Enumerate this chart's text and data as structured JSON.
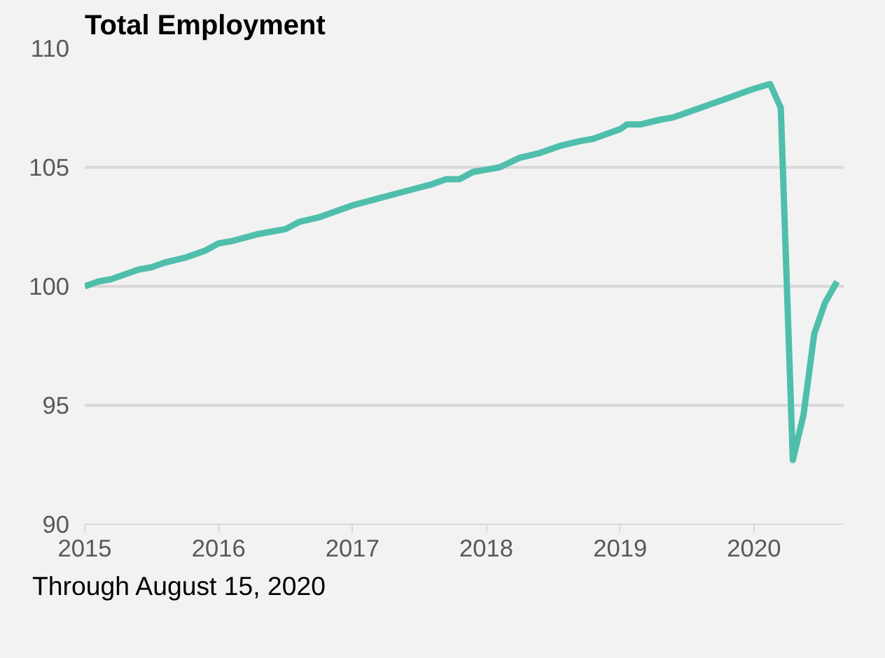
{
  "chart_data": {
    "type": "line",
    "title": "Total Employment",
    "x": [
      2015.0,
      2015.1,
      2015.2,
      2015.4,
      2015.5,
      2015.6,
      2015.75,
      2015.9,
      2016.0,
      2016.1,
      2016.3,
      2016.4,
      2016.5,
      2016.6,
      2016.75,
      2016.9,
      2017.0,
      2017.2,
      2017.4,
      2017.6,
      2017.7,
      2017.8,
      2017.9,
      2018.0,
      2018.1,
      2018.25,
      2018.4,
      2018.55,
      2018.7,
      2018.8,
      2019.0,
      2019.05,
      2019.15,
      2019.3,
      2019.4,
      2019.6,
      2019.8,
      2019.9,
      2020.0,
      2020.12,
      2020.2,
      2020.29,
      2020.37,
      2020.45,
      2020.53,
      2020.62
    ],
    "series": [
      {
        "color": "#4fbfac",
        "values": [
          100.0,
          100.2,
          100.3,
          100.7,
          100.8,
          101.0,
          101.2,
          101.5,
          101.8,
          101.9,
          102.2,
          102.3,
          102.4,
          102.7,
          102.9,
          103.2,
          103.4,
          103.7,
          104.0,
          104.3,
          104.5,
          104.5,
          104.8,
          104.9,
          105.0,
          105.4,
          105.6,
          105.9,
          106.1,
          106.2,
          106.6,
          106.8,
          106.8,
          107.0,
          107.1,
          107.5,
          107.9,
          108.1,
          108.3,
          108.5,
          107.5,
          92.7,
          94.6,
          98.0,
          99.3,
          100.2
        ]
      }
    ],
    "xlim": [
      2015.0,
      2020.67
    ],
    "xticks": [
      2015,
      2016,
      2017,
      2018,
      2019,
      2020
    ],
    "ylim": [
      90,
      110
    ],
    "yticks": [
      90,
      95,
      100,
      105,
      110
    ],
    "grid": "y",
    "marker": "none",
    "line_style": "solid",
    "annotations": [
      "Through August 15, 2020"
    ]
  }
}
